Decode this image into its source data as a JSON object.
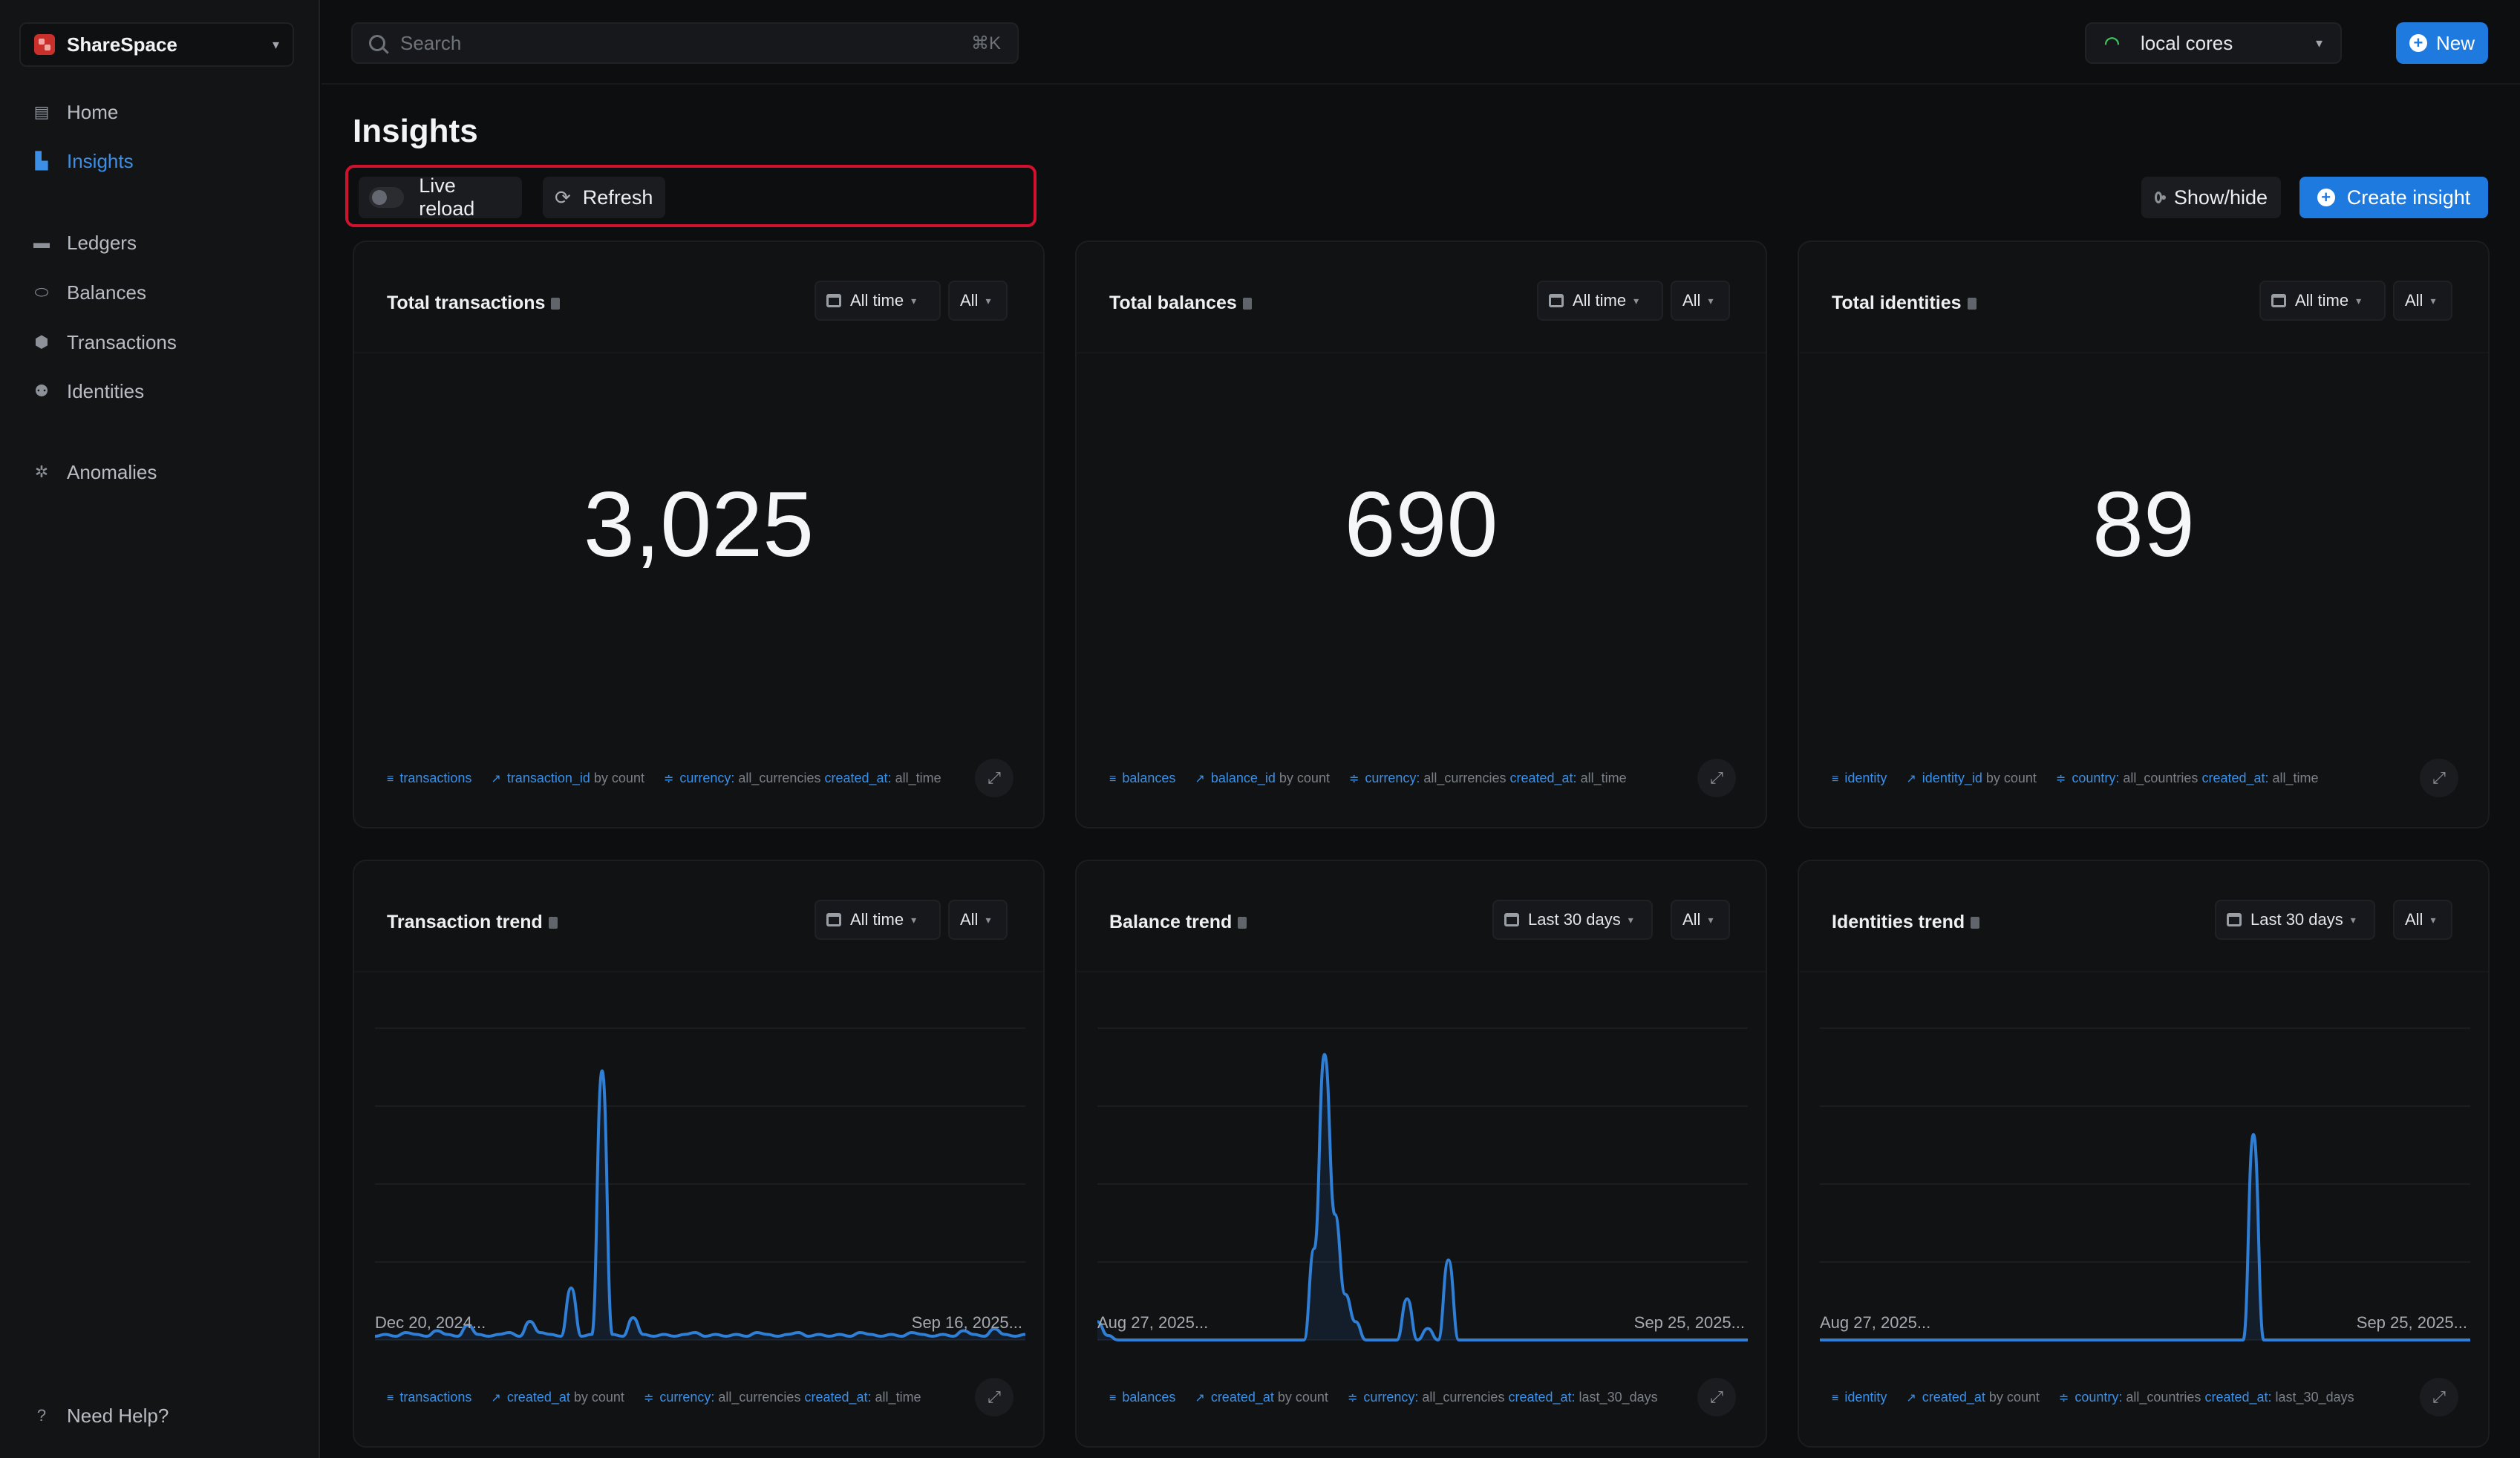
{
  "app": {
    "name": "ShareSpace"
  },
  "nav": [
    {
      "label": "Home",
      "icon": "home-icon"
    },
    {
      "label": "Insights",
      "icon": "chart-icon",
      "active": true
    },
    {
      "label": "Ledgers",
      "icon": "folder-icon"
    },
    {
      "label": "Balances",
      "icon": "coins-icon"
    },
    {
      "label": "Transactions",
      "icon": "receipt-icon"
    },
    {
      "label": "Identities",
      "icon": "users-icon"
    },
    {
      "label": "Anomalies",
      "icon": "bug-icon"
    }
  ],
  "help": {
    "label": "Need Help?"
  },
  "search": {
    "placeholder": "Search",
    "shortcut": "⌘K"
  },
  "env": {
    "label": "local cores"
  },
  "new_button": {
    "label": "New"
  },
  "page": {
    "title": "Insights"
  },
  "toolbar": {
    "live_reload": "Live reload",
    "refresh": "Refresh",
    "show_hide": "Show/hide",
    "create": "Create insight"
  },
  "cards": [
    {
      "title": "Total transactions",
      "range": "All time",
      "filter": "All",
      "value": "3,025",
      "footer": {
        "source": "transactions",
        "metric": "transaction_id",
        "agg": "by count",
        "filter_key": "currency:",
        "filter_val": "all_currencies",
        "filter2_key": "created_at:",
        "filter2_val": "all_time"
      }
    },
    {
      "title": "Total balances",
      "range": "All time",
      "filter": "All",
      "value": "690",
      "footer": {
        "source": "balances",
        "metric": "balance_id",
        "agg": "by count",
        "filter_key": "currency:",
        "filter_val": "all_currencies",
        "filter2_key": "created_at:",
        "filter2_val": "all_time"
      }
    },
    {
      "title": "Total identities",
      "range": "All time",
      "filter": "All",
      "value": "89",
      "footer": {
        "source": "identity",
        "metric": "identity_id",
        "agg": "by count",
        "filter_key": "country:",
        "filter_val": "all_countries",
        "filter2_key": "created_at:",
        "filter2_val": "all_time"
      }
    },
    {
      "title": "Transaction trend",
      "range": "All time",
      "filter": "All",
      "x_start": "Dec 20, 2024...",
      "x_end": "Sep 16, 2025...",
      "footer": {
        "source": "transactions",
        "metric": "created_at",
        "agg": "by count",
        "filter_key": "currency:",
        "filter_val": "all_currencies",
        "filter2_key": "created_at:",
        "filter2_val": "all_time"
      }
    },
    {
      "title": "Balance trend",
      "range": "Last 30 days",
      "filter": "All",
      "x_start": "Aug 27, 2025...",
      "x_end": "Sep 25, 2025...",
      "footer": {
        "source": "balances",
        "metric": "created_at",
        "agg": "by count",
        "filter_key": "currency:",
        "filter_val": "all_currencies",
        "filter2_key": "created_at:",
        "filter2_val": "last_30_days"
      }
    },
    {
      "title": "Identities trend",
      "range": "Last 30 days",
      "filter": "All",
      "x_start": "Aug 27, 2025...",
      "x_end": "Sep 25, 2025...",
      "footer": {
        "source": "identity",
        "metric": "created_at",
        "agg": "by count",
        "filter_key": "country:",
        "filter_val": "all_countries",
        "filter2_key": "created_at:",
        "filter2_val": "last_30_days"
      }
    }
  ],
  "colors": {
    "accent": "#1f7ae0",
    "highlight": "#d0122e",
    "chart_line": "#2f7fd6"
  },
  "chart_data": [
    {
      "type": "line",
      "title": "Transaction trend",
      "series": [
        {
          "values": [
            2,
            3,
            2,
            4,
            3,
            2,
            5,
            3,
            2,
            8,
            3,
            2,
            3,
            4,
            2,
            10,
            4,
            3,
            2,
            28,
            2,
            3,
            145,
            3,
            2,
            12,
            3,
            2,
            3,
            2,
            3,
            4,
            2,
            3,
            2,
            3,
            2,
            4,
            3,
            2,
            3,
            4,
            2,
            3,
            2,
            3,
            2,
            4,
            3,
            2,
            3,
            2,
            4,
            3,
            2,
            3,
            2,
            5,
            3,
            2,
            6,
            3,
            2,
            3
          ]
        }
      ],
      "ylim": [
        0,
        160
      ]
    },
    {
      "type": "line",
      "title": "Balance trend",
      "series": [
        {
          "values": [
            8,
            2,
            0,
            0,
            0,
            0,
            0,
            0,
            0,
            0,
            0,
            0,
            0,
            0,
            0,
            0,
            0,
            0,
            0,
            0,
            0,
            40,
            125,
            55,
            20,
            8,
            0,
            0,
            0,
            0,
            18,
            0,
            5,
            0,
            35,
            0,
            0,
            0,
            0,
            0,
            0,
            0,
            0,
            0,
            0,
            0,
            0,
            0,
            0,
            0,
            0,
            0,
            0,
            0,
            0,
            0,
            0,
            0,
            0,
            0,
            0,
            0,
            0,
            0
          ]
        }
      ],
      "ylim": [
        0,
        130
      ]
    },
    {
      "type": "line",
      "title": "Identities trend",
      "series": [
        {
          "values": [
            0,
            0,
            0,
            0,
            0,
            0,
            0,
            0,
            0,
            0,
            0,
            0,
            0,
            0,
            0,
            0,
            0,
            0,
            0,
            0,
            0,
            0,
            0,
            0,
            0,
            0,
            0,
            0,
            0,
            0,
            0,
            0,
            0,
            0,
            0,
            0,
            0,
            0,
            0,
            0,
            0,
            0,
            90,
            0,
            0,
            0,
            0,
            0,
            0,
            0,
            0,
            0,
            0,
            0,
            0,
            0,
            0,
            0,
            0,
            0,
            0,
            0,
            0,
            0
          ]
        }
      ],
      "ylim": [
        0,
        130
      ]
    }
  ]
}
